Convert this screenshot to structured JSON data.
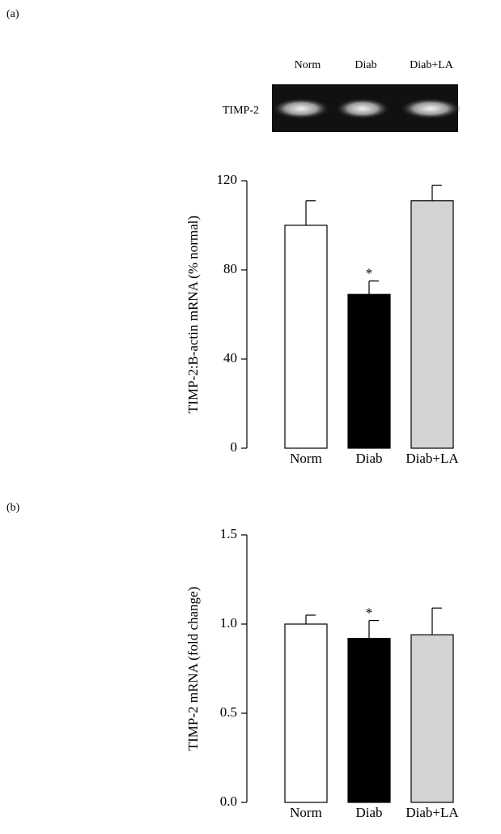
{
  "chart_data": [
    {
      "type": "bar",
      "label": "(a)",
      "gel": {
        "row_label": "TIMP-2",
        "lanes": [
          "Norm",
          "Diab",
          "Diab+LA"
        ]
      },
      "ylabel": "TIMP-2:B-actin mRNA (% normal)",
      "categories": [
        "Norm",
        "Diab",
        "Diab+LA"
      ],
      "values": [
        100,
        69,
        111
      ],
      "errors": [
        11,
        6,
        7
      ],
      "colors": [
        "#ffffff",
        "#000000",
        "#d3d3d3"
      ],
      "annotations": [
        {
          "text": "*",
          "x": "Diab"
        }
      ],
      "ylim": [
        0,
        120
      ],
      "yticks": [
        0,
        40,
        80,
        120
      ]
    },
    {
      "type": "bar",
      "label": "(b)",
      "ylabel": "TIMP-2 mRNA (fold change)",
      "categories": [
        "Norm",
        "Diab",
        "Diab+LA"
      ],
      "values": [
        1.0,
        0.92,
        0.94
      ],
      "errors": [
        0.05,
        0.1,
        0.15
      ],
      "colors": [
        "#ffffff",
        "#000000",
        "#d3d3d3"
      ],
      "annotations": [
        {
          "text": "*",
          "x": "Diab"
        }
      ],
      "ylim": [
        0,
        1.5
      ],
      "yticks": [
        {
          "value": 0,
          "label": "0.0"
        },
        0.5,
        {
          "value": 1,
          "label": "1.0"
        },
        1.5
      ]
    }
  ]
}
